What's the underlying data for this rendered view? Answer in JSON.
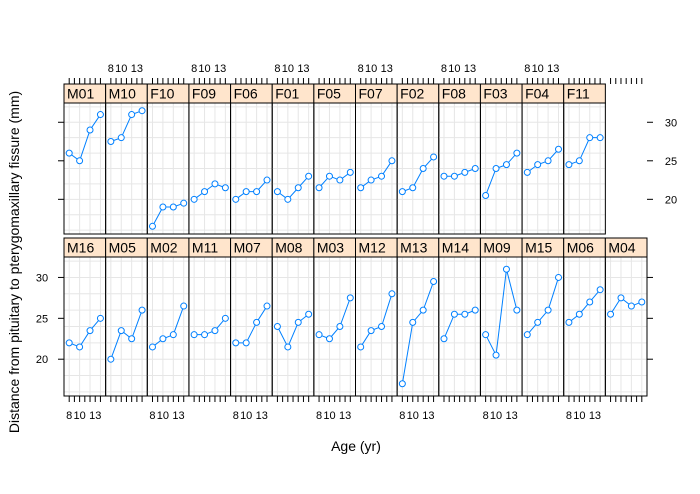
{
  "chart_data": {
    "type": "line",
    "xlabel": "Age (yr)",
    "ylabel": "Distance from pituitary to pterygomaxillary fissure (mm)",
    "x": [
      8,
      10,
      12,
      14
    ],
    "x_tick_labels": [
      "8",
      "10",
      "13"
    ],
    "x_ticks": [
      8,
      10,
      13
    ],
    "ylim": [
      15.5,
      32.5
    ],
    "y_ticks": [
      20,
      25,
      30
    ],
    "grid": true,
    "line_color": "#0080ff",
    "strip_color": "#ffe5cc",
    "rows": [
      {
        "position": "top",
        "panels": [
          {
            "name": "M01",
            "values": [
              26,
              25,
              29,
              31
            ]
          },
          {
            "name": "M10",
            "values": [
              27.5,
              28,
              31,
              31.5
            ]
          },
          {
            "name": "F10",
            "values": [
              16.5,
              19,
              19,
              19.5
            ]
          },
          {
            "name": "F09",
            "values": [
              20,
              21,
              22,
              21.5
            ]
          },
          {
            "name": "F06",
            "values": [
              20,
              21,
              21,
              22.5
            ]
          },
          {
            "name": "F01",
            "values": [
              21,
              20,
              21.5,
              23
            ]
          },
          {
            "name": "F05",
            "values": [
              21.5,
              23,
              22.5,
              23.5
            ]
          },
          {
            "name": "F07",
            "values": [
              21.5,
              22.5,
              23,
              25
            ]
          },
          {
            "name": "F02",
            "values": [
              21,
              21.5,
              24,
              25.5
            ]
          },
          {
            "name": "F08",
            "values": [
              23,
              23,
              23.5,
              24
            ]
          },
          {
            "name": "F03",
            "values": [
              20.5,
              24,
              24.5,
              26
            ]
          },
          {
            "name": "F04",
            "values": [
              23.5,
              24.5,
              25,
              26.5
            ]
          },
          {
            "name": "F11",
            "values": [
              24.5,
              25,
              28,
              28
            ]
          }
        ]
      },
      {
        "position": "bottom",
        "panels": [
          {
            "name": "M16",
            "values": [
              22,
              21.5,
              23.5,
              25
            ]
          },
          {
            "name": "M05",
            "values": [
              20,
              23.5,
              22.5,
              26
            ]
          },
          {
            "name": "M02",
            "values": [
              21.5,
              22.5,
              23,
              26.5
            ]
          },
          {
            "name": "M11",
            "values": [
              23,
              23,
              23.5,
              25
            ]
          },
          {
            "name": "M07",
            "values": [
              22,
              22,
              24.5,
              26.5
            ]
          },
          {
            "name": "M08",
            "values": [
              24,
              21.5,
              24.5,
              25.5
            ]
          },
          {
            "name": "M03",
            "values": [
              23,
              22.5,
              24,
              27.5
            ]
          },
          {
            "name": "M12",
            "values": [
              21.5,
              23.5,
              24,
              28
            ]
          },
          {
            "name": "M13",
            "values": [
              17,
              24.5,
              26,
              29.5
            ]
          },
          {
            "name": "M14",
            "values": [
              22.5,
              25.5,
              25.5,
              26
            ]
          },
          {
            "name": "M09",
            "values": [
              23,
              20.5,
              31,
              26
            ]
          },
          {
            "name": "M15",
            "values": [
              23,
              24.5,
              26,
              30
            ]
          },
          {
            "name": "M06",
            "values": [
              24.5,
              25.5,
              27,
              28.5
            ]
          },
          {
            "name": "M04",
            "values": [
              25.5,
              27.5,
              26.5,
              27
            ]
          }
        ]
      }
    ]
  }
}
